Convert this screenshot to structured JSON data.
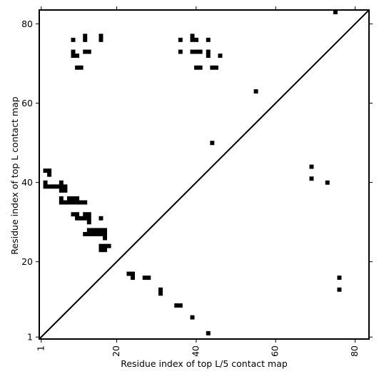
{
  "chart_data": {
    "type": "heatmap",
    "title": "",
    "xlabel": "Residue index of top L/5 contact map",
    "ylabel": "Residue index of top L contact map",
    "xlim": [
      0.5,
      83.5
    ],
    "ylim": [
      0.5,
      83.5
    ],
    "x_ticks": [
      1,
      20,
      40,
      60,
      80
    ],
    "y_ticks": [
      1,
      20,
      40,
      60,
      80
    ],
    "diagonal": true,
    "cell_color": "#000000",
    "grid": false,
    "cells": [
      [
        12,
        77
      ],
      [
        12,
        76
      ],
      [
        16,
        77
      ],
      [
        16,
        76
      ],
      [
        9,
        76
      ],
      [
        9,
        73
      ],
      [
        9,
        72
      ],
      [
        10,
        72
      ],
      [
        12,
        73
      ],
      [
        13,
        73
      ],
      [
        10,
        69
      ],
      [
        11,
        69
      ],
      [
        36,
        76
      ],
      [
        36,
        73
      ],
      [
        39,
        77
      ],
      [
        39,
        76
      ],
      [
        40,
        76
      ],
      [
        39,
        73
      ],
      [
        40,
        73
      ],
      [
        41,
        73
      ],
      [
        43,
        76
      ],
      [
        43,
        73
      ],
      [
        43,
        72
      ],
      [
        46,
        72
      ],
      [
        40,
        69
      ],
      [
        41,
        69
      ],
      [
        44,
        69
      ],
      [
        45,
        69
      ],
      [
        75,
        83
      ],
      [
        55,
        63
      ],
      [
        44,
        50
      ],
      [
        69,
        44
      ],
      [
        69,
        41
      ],
      [
        73,
        40
      ],
      [
        2,
        43
      ],
      [
        3,
        43
      ],
      [
        3,
        42
      ],
      [
        2,
        40
      ],
      [
        2,
        39
      ],
      [
        3,
        39
      ],
      [
        4,
        39
      ],
      [
        5,
        39
      ],
      [
        6,
        40
      ],
      [
        6,
        39
      ],
      [
        7,
        39
      ],
      [
        6,
        38
      ],
      [
        7,
        38
      ],
      [
        6,
        36
      ],
      [
        6,
        35
      ],
      [
        7,
        35
      ],
      [
        8,
        36
      ],
      [
        8,
        35
      ],
      [
        9,
        36
      ],
      [
        9,
        35
      ],
      [
        10,
        36
      ],
      [
        10,
        35
      ],
      [
        11,
        35
      ],
      [
        12,
        35
      ],
      [
        9,
        32
      ],
      [
        10,
        32
      ],
      [
        10,
        31
      ],
      [
        11,
        31
      ],
      [
        12,
        32
      ],
      [
        12,
        31
      ],
      [
        13,
        32
      ],
      [
        13,
        31
      ],
      [
        13,
        30
      ],
      [
        16,
        31
      ],
      [
        12,
        27
      ],
      [
        13,
        28
      ],
      [
        13,
        27
      ],
      [
        14,
        28
      ],
      [
        14,
        27
      ],
      [
        15,
        28
      ],
      [
        15,
        27
      ],
      [
        16,
        28
      ],
      [
        16,
        27
      ],
      [
        17,
        28
      ],
      [
        17,
        27
      ],
      [
        17,
        26
      ],
      [
        16,
        24
      ],
      [
        16,
        23
      ],
      [
        17,
        24
      ],
      [
        17,
        23
      ],
      [
        18,
        24
      ],
      [
        23,
        17
      ],
      [
        24,
        17
      ],
      [
        24,
        16
      ],
      [
        27,
        16
      ],
      [
        28,
        16
      ],
      [
        31,
        13
      ],
      [
        31,
        12
      ],
      [
        35,
        9
      ],
      [
        36,
        9
      ],
      [
        39,
        6
      ],
      [
        43,
        2
      ],
      [
        76,
        16
      ],
      [
        76,
        13
      ]
    ]
  }
}
